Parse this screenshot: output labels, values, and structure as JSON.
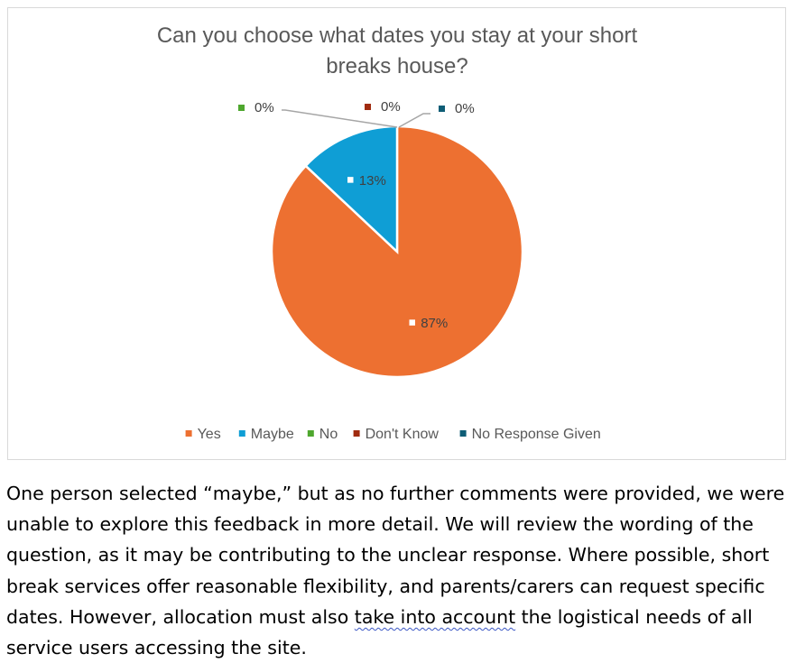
{
  "chart_data": {
    "type": "pie",
    "title_lines": [
      "Can you choose what dates you stay at your short",
      "breaks house?"
    ],
    "categories": [
      "Yes",
      "Maybe",
      "No",
      "Don't Know",
      "No Response Given"
    ],
    "values": [
      87,
      13,
      0,
      0,
      0
    ],
    "data_labels": [
      "87%",
      "13%",
      "0%",
      "0%",
      "0%"
    ],
    "colors": [
      "#ed7031",
      "#0f9ed5",
      "#4ea72e",
      "#a02b10",
      "#0e5d76"
    ],
    "legend_position": "bottom"
  },
  "text": {
    "line1": "One person selected “maybe,” but as no further comments were provided, we were",
    "line2": "unable to explore this feedback in more detail. We will review the wording of the",
    "line3": "question, as it may be contributing to the unclear response. Where possible, short",
    "line4": "break services offer reasonable flexibility, and parents/carers can request specific",
    "line5_a": "dates. However, allocation must also ",
    "line5_b": "take into account",
    "line5_c": " the logistical needs of all",
    "line6": "service users accessing the site."
  }
}
